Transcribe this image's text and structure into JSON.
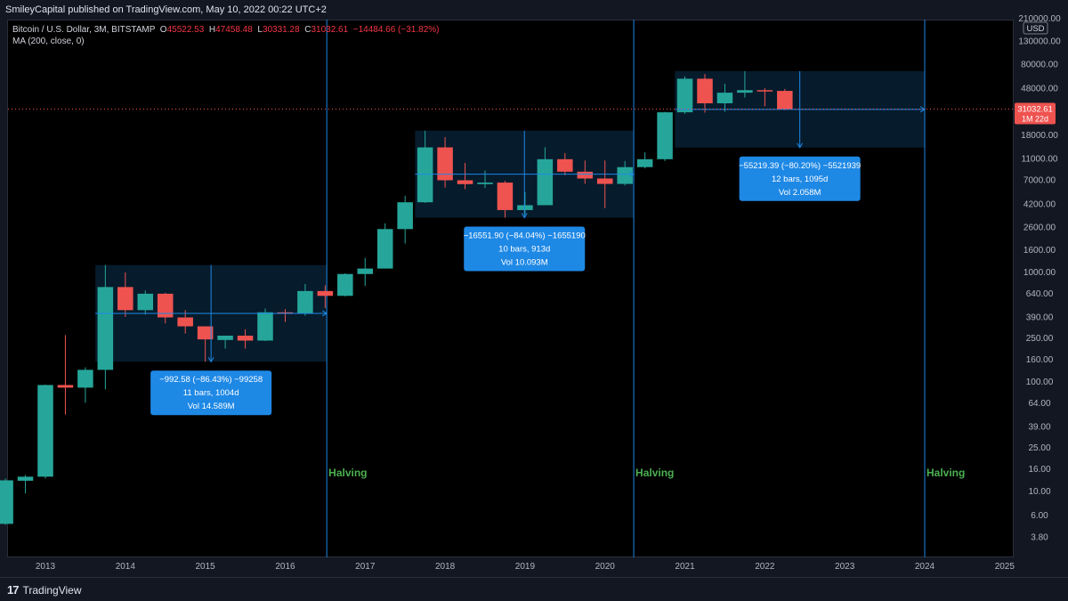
{
  "header": {
    "publisher": "SmileyCapital published on TradingView.com, May 10, 2022 00:22 UTC+2"
  },
  "legend": {
    "symbol": "Bitcoin / U.S. Dollar, 3M, BITSTAMP",
    "o_label": "O",
    "o_value": "45522.53",
    "h_label": "H",
    "h_value": "47458.48",
    "l_label": "L",
    "l_value": "30331.28",
    "c_label": "C",
    "c_value": "31032.61",
    "change": "−14484.66 (−31.82%)",
    "indicator": "MA (200, close, 0)"
  },
  "footer": {
    "brand": "TradingView"
  },
  "colors": {
    "up": "#26a69a",
    "down": "#ef5350",
    "accent": "#2962ff",
    "halving": "#2e7d32",
    "measure": "#1e88e5"
  },
  "chart_data": {
    "type": "candlestick",
    "scale": "log",
    "currency": "USD",
    "ylim": [
      2.6,
      220000
    ],
    "y_ticks": [
      "210000.00",
      "130000.00",
      "80000.00",
      "48000.00",
      "18000.00",
      "11000.00",
      "7000.00",
      "4200.00",
      "2600.00",
      "1600.00",
      "1000.00",
      "640.00",
      "390.00",
      "250.00",
      "160.00",
      "100.00",
      "64.00",
      "39.00",
      "25.00",
      "16.00",
      "10.00",
      "6.00",
      "3.80"
    ],
    "y_tick_values": [
      210000,
      130000,
      80000,
      48000,
      18000,
      11000,
      7000,
      4200,
      2600,
      1600,
      1000,
      640,
      390,
      250,
      160,
      100,
      64,
      39,
      25,
      16,
      10,
      6,
      3.8
    ],
    "x_ticks": [
      {
        "label": "2013",
        "t": 2013.0
      },
      {
        "label": "2014",
        "t": 2014.0
      },
      {
        "label": "2015",
        "t": 2015.0
      },
      {
        "label": "2016",
        "t": 2016.0
      },
      {
        "label": "2017",
        "t": 2017.0
      },
      {
        "label": "2018",
        "t": 2018.0
      },
      {
        "label": "2019",
        "t": 2019.0
      },
      {
        "label": "2020",
        "t": 2020.0
      },
      {
        "label": "2021",
        "t": 2021.0
      },
      {
        "label": "2022",
        "t": 2022.0
      },
      {
        "label": "2023",
        "t": 2023.0
      },
      {
        "label": "2024",
        "t": 2024.0
      },
      {
        "label": "2025",
        "t": 2025.0
      }
    ],
    "candles": [
      {
        "t": 2012.5,
        "o": 5.0,
        "h": 13.0,
        "l": 4.9,
        "c": 12.5
      },
      {
        "t": 2012.75,
        "o": 12.4,
        "h": 14.0,
        "l": 9.5,
        "c": 13.5
      },
      {
        "t": 2013.0,
        "o": 13.5,
        "h": 94,
        "l": 13.0,
        "c": 93
      },
      {
        "t": 2013.25,
        "o": 93,
        "h": 266,
        "l": 50,
        "c": 88
      },
      {
        "t": 2013.5,
        "o": 88,
        "h": 135,
        "l": 64,
        "c": 128
      },
      {
        "t": 2013.75,
        "o": 128,
        "h": 1163,
        "l": 85,
        "c": 732
      },
      {
        "t": 2014.0,
        "o": 732,
        "h": 995,
        "l": 390,
        "c": 450
      },
      {
        "t": 2014.25,
        "o": 450,
        "h": 680,
        "l": 410,
        "c": 636
      },
      {
        "t": 2014.5,
        "o": 636,
        "h": 650,
        "l": 340,
        "c": 386
      },
      {
        "t": 2014.75,
        "o": 386,
        "h": 450,
        "l": 275,
        "c": 320
      },
      {
        "t": 2015.0,
        "o": 320,
        "h": 320,
        "l": 152,
        "c": 243
      },
      {
        "t": 2015.25,
        "o": 240,
        "h": 260,
        "l": 200,
        "c": 263
      },
      {
        "t": 2015.5,
        "o": 263,
        "h": 300,
        "l": 200,
        "c": 237
      },
      {
        "t": 2015.75,
        "o": 237,
        "h": 465,
        "l": 235,
        "c": 430
      },
      {
        "t": 2016.0,
        "o": 430,
        "h": 460,
        "l": 350,
        "c": 416
      },
      {
        "t": 2016.25,
        "o": 416,
        "h": 780,
        "l": 400,
        "c": 673
      },
      {
        "t": 2016.5,
        "o": 673,
        "h": 760,
        "l": 470,
        "c": 608
      },
      {
        "t": 2016.75,
        "o": 608,
        "h": 980,
        "l": 600,
        "c": 963
      },
      {
        "t": 2017.0,
        "o": 963,
        "h": 1350,
        "l": 750,
        "c": 1080
      },
      {
        "t": 2017.25,
        "o": 1080,
        "h": 2800,
        "l": 1080,
        "c": 2480
      },
      {
        "t": 2017.5,
        "o": 2480,
        "h": 5000,
        "l": 1830,
        "c": 4360
      },
      {
        "t": 2017.75,
        "o": 4360,
        "h": 19700,
        "l": 4300,
        "c": 13850
      },
      {
        "t": 2018.0,
        "o": 13850,
        "h": 17200,
        "l": 5920,
        "c": 6930
      },
      {
        "t": 2018.25,
        "o": 6930,
        "h": 9990,
        "l": 5750,
        "c": 6390
      },
      {
        "t": 2018.5,
        "o": 6390,
        "h": 8500,
        "l": 5880,
        "c": 6600
      },
      {
        "t": 2018.75,
        "o": 6600,
        "h": 6850,
        "l": 3150,
        "c": 3700
      },
      {
        "t": 2019.0,
        "o": 3700,
        "h": 5400,
        "l": 3350,
        "c": 4100
      },
      {
        "t": 2019.25,
        "o": 4100,
        "h": 13880,
        "l": 4100,
        "c": 10800
      },
      {
        "t": 2019.5,
        "o": 10800,
        "h": 12300,
        "l": 7700,
        "c": 8300
      },
      {
        "t": 2019.75,
        "o": 8300,
        "h": 10500,
        "l": 6430,
        "c": 7190
      },
      {
        "t": 2020.0,
        "o": 7190,
        "h": 10500,
        "l": 3850,
        "c": 6420
      },
      {
        "t": 2020.25,
        "o": 6420,
        "h": 10400,
        "l": 6200,
        "c": 9140
      },
      {
        "t": 2020.5,
        "o": 9140,
        "h": 12500,
        "l": 8900,
        "c": 10800
      },
      {
        "t": 2020.75,
        "o": 10800,
        "h": 29300,
        "l": 10400,
        "c": 28990
      },
      {
        "t": 2021.0,
        "o": 28990,
        "h": 61800,
        "l": 28000,
        "c": 58800
      },
      {
        "t": 2021.25,
        "o": 58800,
        "h": 64900,
        "l": 28800,
        "c": 35040
      },
      {
        "t": 2021.5,
        "o": 35040,
        "h": 52900,
        "l": 29300,
        "c": 43800
      },
      {
        "t": 2021.75,
        "o": 43800,
        "h": 69000,
        "l": 39600,
        "c": 46200
      },
      {
        "t": 2022.0,
        "o": 46200,
        "h": 48200,
        "l": 32900,
        "c": 45500
      },
      {
        "t": 2022.25,
        "o": 45500,
        "h": 47458,
        "l": 30331,
        "c": 31032
      }
    ],
    "halvings": [
      {
        "label": "Halving",
        "t": 2016.52
      },
      {
        "label": "Halving",
        "t": 2020.36
      },
      {
        "label": "Halving",
        "t": 2024.0
      }
    ],
    "measurements": [
      {
        "t0": 2013.75,
        "t1": 2016.52,
        "p_high": 1163,
        "p_low": 152,
        "line1": "−992.58 (−86.43%) −99258",
        "line2": "11 bars, 1004d",
        "line3": "Vol 14.589M"
      },
      {
        "t0": 2017.75,
        "t1": 2020.36,
        "p_high": 19700,
        "p_low": 3150,
        "line1": "−16551.90 (−84.04%) −1655190",
        "line2": "10 bars, 913d",
        "line3": "Vol 10.093M"
      },
      {
        "t0": 2021.0,
        "t1": 2024.0,
        "p_high": 69000,
        "p_low": 13780,
        "line1": "−55219.39 (−80.20%) −5521939",
        "line2": "12 bars, 1095d",
        "line3": "Vol 2.058M"
      }
    ],
    "last_price": {
      "value": 31032.61,
      "label": "31032.61",
      "countdown": "1M 22d"
    }
  }
}
